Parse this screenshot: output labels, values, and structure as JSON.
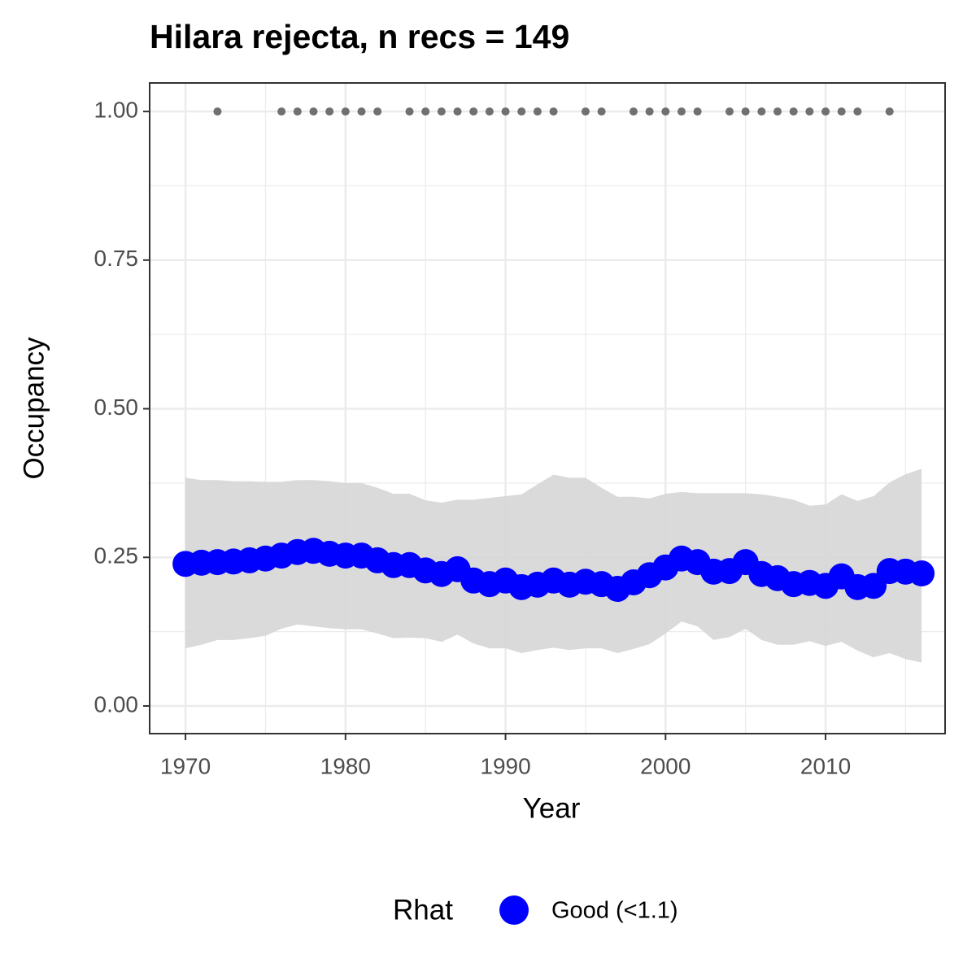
{
  "chart_data": {
    "type": "line",
    "title": "Hilara rejecta, n recs = 149",
    "x_label": "Year",
    "y_label": "Occupancy",
    "legend_title": "Rhat",
    "x": [
      1970,
      1971,
      1972,
      1973,
      1974,
      1975,
      1976,
      1977,
      1978,
      1979,
      1980,
      1981,
      1982,
      1983,
      1984,
      1985,
      1986,
      1987,
      1988,
      1989,
      1990,
      1991,
      1992,
      1993,
      1994,
      1995,
      1996,
      1997,
      1998,
      1999,
      2000,
      2001,
      2002,
      2003,
      2004,
      2005,
      2006,
      2007,
      2008,
      2009,
      2010,
      2011,
      2012,
      2013,
      2014,
      2015,
      2016
    ],
    "series": [
      {
        "name": "Good (<1.1)",
        "color": "#0000ff",
        "values": [
          0.239,
          0.241,
          0.242,
          0.243,
          0.245,
          0.248,
          0.253,
          0.259,
          0.261,
          0.256,
          0.253,
          0.253,
          0.245,
          0.237,
          0.237,
          0.228,
          0.222,
          0.23,
          0.211,
          0.205,
          0.211,
          0.2,
          0.204,
          0.211,
          0.204,
          0.209,
          0.205,
          0.197,
          0.208,
          0.22,
          0.233,
          0.248,
          0.242,
          0.226,
          0.227,
          0.242,
          0.222,
          0.215,
          0.205,
          0.207,
          0.202,
          0.218,
          0.2,
          0.202,
          0.227,
          0.226,
          0.223
        ]
      }
    ],
    "upper": [
      0.384,
      0.38,
      0.38,
      0.378,
      0.378,
      0.377,
      0.377,
      0.38,
      0.38,
      0.378,
      0.375,
      0.375,
      0.367,
      0.357,
      0.357,
      0.346,
      0.342,
      0.347,
      0.347,
      0.35,
      0.353,
      0.356,
      0.373,
      0.389,
      0.384,
      0.384,
      0.367,
      0.352,
      0.352,
      0.349,
      0.357,
      0.36,
      0.358,
      0.358,
      0.358,
      0.358,
      0.356,
      0.352,
      0.347,
      0.337,
      0.339,
      0.356,
      0.345,
      0.353,
      0.376,
      0.39,
      0.399
    ],
    "lower": [
      0.097,
      0.103,
      0.111,
      0.111,
      0.114,
      0.118,
      0.13,
      0.137,
      0.134,
      0.131,
      0.129,
      0.129,
      0.122,
      0.114,
      0.115,
      0.114,
      0.108,
      0.12,
      0.105,
      0.097,
      0.097,
      0.089,
      0.094,
      0.098,
      0.094,
      0.097,
      0.097,
      0.089,
      0.096,
      0.104,
      0.122,
      0.142,
      0.134,
      0.111,
      0.116,
      0.13,
      0.111,
      0.103,
      0.103,
      0.109,
      0.101,
      0.108,
      0.093,
      0.082,
      0.089,
      0.079,
      0.073
    ],
    "ribbon_color": "#d6d6d6",
    "records": {
      "color": "#707070",
      "x": [
        1972,
        1976,
        1977,
        1978,
        1979,
        1980,
        1981,
        1982,
        1984,
        1985,
        1986,
        1987,
        1988,
        1989,
        1990,
        1991,
        1992,
        1993,
        1995,
        1996,
        1998,
        1999,
        2000,
        2001,
        2002,
        2004,
        2005,
        2006,
        2007,
        2008,
        2009,
        2010,
        2011,
        2012,
        2014
      ],
      "values": [
        1,
        1,
        1,
        1,
        1,
        1,
        1,
        1,
        1,
        1,
        1,
        1,
        1,
        1,
        1,
        1,
        1,
        1,
        1,
        1,
        1,
        1,
        1,
        1,
        1,
        1,
        1,
        1,
        1,
        1,
        1,
        1,
        1,
        1,
        1
      ]
    },
    "xlim": [
      1967.76,
      2017.47
    ],
    "ylim": [
      -0.0465,
      1.048
    ],
    "xticks": [
      1970,
      1980,
      1990,
      2000,
      2010
    ],
    "yticks": [
      {
        "value": 0,
        "label": "0.00"
      },
      {
        "value": 0.25,
        "label": "0.25"
      },
      {
        "value": 0.5,
        "label": "0.50"
      },
      {
        "value": 0.75,
        "label": "0.75"
      },
      {
        "value": 1,
        "label": "1.00"
      }
    ],
    "minor_xticks": [
      1975,
      1985,
      1995,
      2005,
      2015
    ],
    "minor_yticks": [
      0.125,
      0.375,
      0.625,
      0.875
    ],
    "grid": true,
    "legend_position": "bottom"
  }
}
